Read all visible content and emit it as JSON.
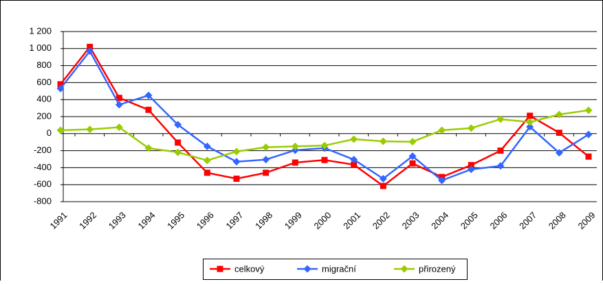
{
  "chart_data": {
    "type": "line",
    "categories": [
      "1991",
      "1992",
      "1993",
      "1994",
      "1995",
      "1996",
      "1997",
      "1998",
      "1999",
      "2000",
      "2001",
      "2002",
      "2003",
      "2004",
      "2005",
      "2006",
      "2007",
      "2008",
      "2009"
    ],
    "series": [
      {
        "name": "celkový",
        "color": "#ff0000",
        "marker": "square",
        "values": [
          580,
          1020,
          420,
          280,
          -105,
          -460,
          -530,
          -460,
          -340,
          -310,
          -365,
          -615,
          -350,
          -510,
          -370,
          -200,
          210,
          10,
          -270
        ]
      },
      {
        "name": "migrační",
        "color": "#3366ff",
        "marker": "diamond",
        "values": [
          530,
          970,
          340,
          450,
          105,
          -150,
          -330,
          -305,
          -195,
          -170,
          -305,
          -530,
          -265,
          -550,
          -420,
          -380,
          80,
          -225,
          -10
        ]
      },
      {
        "name": "přirozený",
        "color": "#99cc00",
        "marker": "diamond",
        "values": [
          40,
          50,
          75,
          -170,
          -220,
          -315,
          -210,
          -160,
          -150,
          -140,
          -65,
          -90,
          -95,
          40,
          65,
          170,
          135,
          225,
          275
        ]
      }
    ],
    "ylim": [
      -800,
      1200
    ],
    "yticks": [
      -800,
      -600,
      -400,
      -200,
      0,
      200,
      400,
      600,
      800,
      {
        "value": 1000,
        "label": "1 000"
      },
      {
        "value": 1200,
        "label": "1 200"
      }
    ],
    "grid": true,
    "legend": "bottom"
  }
}
